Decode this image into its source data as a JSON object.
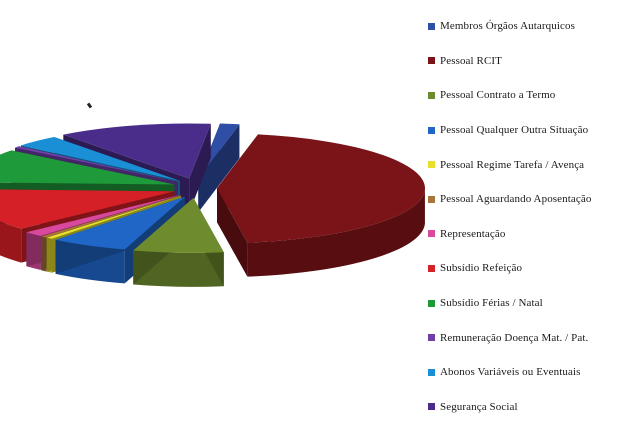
{
  "chart_data": {
    "type": "pie",
    "style": "3d-exploded",
    "title": "",
    "legend_position": "right",
    "categories": [
      "Membros Órgãos Autarquicos",
      "Pessoal RCIT",
      "Pessoal Contrato a Termo",
      "Pessoal Qualquer Outra Situação",
      "Pessoal Regime Tarefa / Avença",
      "Pessoal Aguardando Aposentação",
      "Representação",
      "Subsídio Refeição",
      "Subsídio Férias / Natal",
      "Remuneração Doença Mat. / Pat.",
      "Abonos Variáveis ou Eventuais",
      "Segurança Social"
    ],
    "values": [
      1.5,
      44.5,
      7.0,
      6.0,
      0.5,
      0.5,
      1.5,
      12.5,
      10.0,
      0.5,
      3.5,
      12.0
    ],
    "value_unit": "percent (estimated)",
    "colors": [
      "#2f4fa6",
      "#7a1418",
      "#6e8c2e",
      "#1f66c6",
      "#e6e02a",
      "#a8743a",
      "#d8489c",
      "#d42026",
      "#1f9a3a",
      "#7040a8",
      "#1a8fd6",
      "#4a2d8a"
    ]
  }
}
